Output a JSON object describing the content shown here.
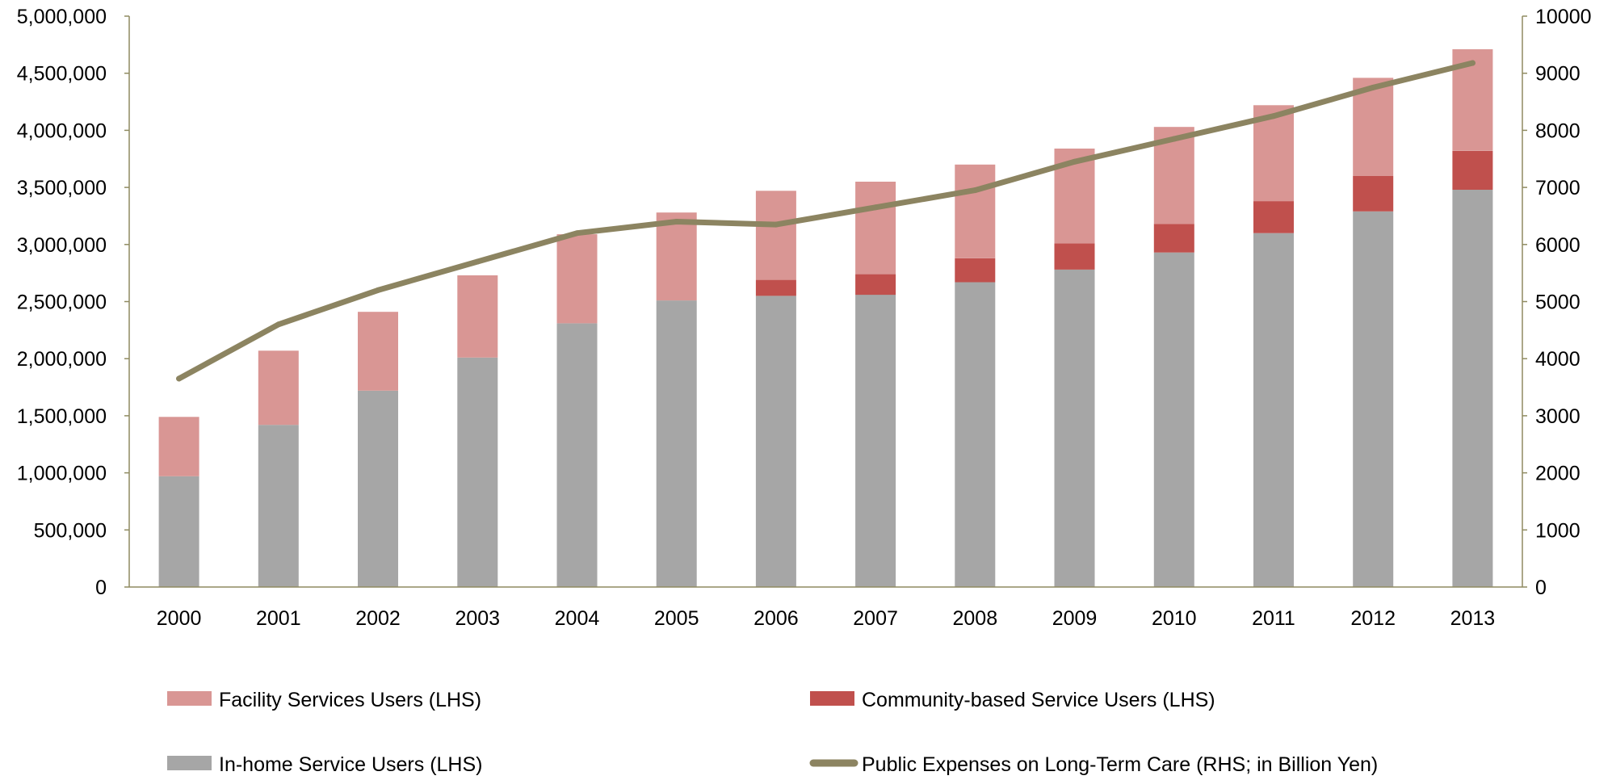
{
  "chart_data": {
    "type": "bar",
    "stacked": true,
    "categories": [
      "2000",
      "2001",
      "2002",
      "2003",
      "2004",
      "2005",
      "2006",
      "2007",
      "2008",
      "2009",
      "2010",
      "2011",
      "2012",
      "2013"
    ],
    "series": [
      {
        "name": "In-home Service Users (LHS)",
        "axis": "left",
        "type": "bar",
        "color": "#a6a6a6",
        "values": [
          970000,
          1420000,
          1720000,
          2010000,
          2310000,
          2510000,
          2550000,
          2560000,
          2670000,
          2780000,
          2930000,
          3100000,
          3290000,
          3480000
        ]
      },
      {
        "name": "Community-based Service Users (LHS)",
        "axis": "left",
        "type": "bar",
        "color": "#c0504d",
        "values": [
          0,
          0,
          0,
          0,
          0,
          0,
          140000,
          180000,
          210000,
          230000,
          250000,
          280000,
          310000,
          340000
        ]
      },
      {
        "name": "Facility Services Users (LHS)",
        "axis": "left",
        "type": "bar",
        "color": "#d99694",
        "values": [
          520000,
          650000,
          690000,
          720000,
          780000,
          770000,
          780000,
          810000,
          820000,
          830000,
          850000,
          840000,
          860000,
          890000
        ]
      },
      {
        "name": "Public Expenses on Long-Term Care (RHS; in Billion Yen)",
        "axis": "right",
        "type": "line",
        "color": "#8c8461",
        "values": [
          3650,
          4600,
          5200,
          5700,
          6200,
          6400,
          6350,
          6650,
          6950,
          7450,
          7850,
          8250,
          8750,
          9180
        ]
      }
    ],
    "y_left": {
      "ylim": [
        0,
        5000000
      ],
      "ticks": [
        0,
        500000,
        1000000,
        1500000,
        2000000,
        2500000,
        3000000,
        3500000,
        4000000,
        4500000,
        5000000
      ],
      "tick_labels": [
        "0",
        "500,000",
        "1,000,000",
        "1,500,000",
        "2,000,000",
        "2,500,000",
        "3,000,000",
        "3,500,000",
        "4,000,000",
        "4,500,000",
        "5,000,000"
      ]
    },
    "y_right": {
      "ylim": [
        0,
        10000
      ],
      "ticks": [
        0,
        1000,
        2000,
        3000,
        4000,
        5000,
        6000,
        7000,
        8000,
        9000,
        10000
      ],
      "tick_labels": [
        "0",
        "1000",
        "2000",
        "3000",
        "4000",
        "5000",
        "6000",
        "7000",
        "8000",
        "9000",
        "10000"
      ]
    },
    "axis_color": "#8f8a60",
    "grid": false,
    "legend": {
      "placement": "bottom",
      "entries": [
        "Facility Services Users (LHS)",
        "Community-based Service Users (LHS)",
        "In-home Service Users (LHS)",
        "Public Expenses on Long-Term Care (RHS; in Billion Yen)"
      ]
    }
  }
}
